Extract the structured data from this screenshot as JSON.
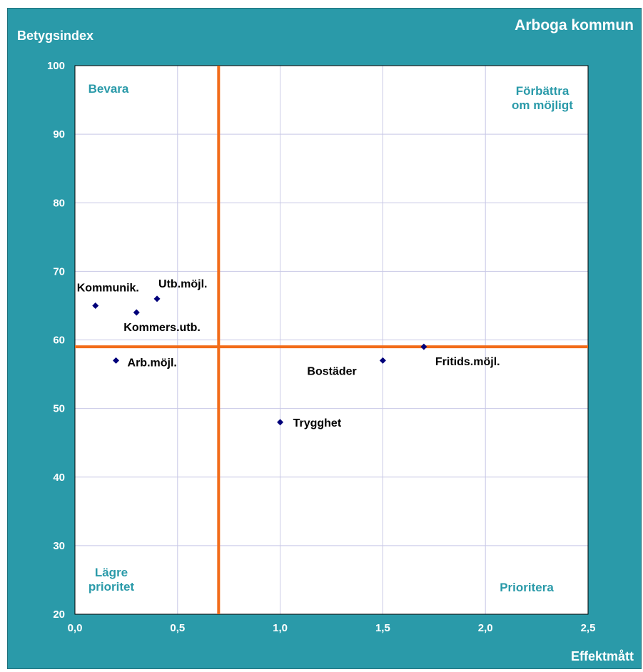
{
  "chart_data": {
    "type": "scatter",
    "title": "Arboga kommun",
    "xlabel": "Effektmått",
    "ylabel": "Betygsindex",
    "xlim": [
      0,
      2.5
    ],
    "ylim": [
      20,
      100
    ],
    "x_ticks": [
      "0,0",
      "0,5",
      "1,0",
      "1,5",
      "2,0",
      "2,5"
    ],
    "y_ticks": [
      "20",
      "30",
      "40",
      "50",
      "60",
      "70",
      "80",
      "90",
      "100"
    ],
    "grid": true,
    "reference_lines": {
      "x": 0.7,
      "y": 59
    },
    "quadrant_labels": {
      "top_left": [
        "Bevara"
      ],
      "top_right": [
        "Förbättra",
        "om möjligt"
      ],
      "bottom_left": [
        "Lägre",
        "prioritet"
      ],
      "bottom_right": [
        "Prioritera"
      ]
    },
    "points": [
      {
        "label": "Kommunik.",
        "x": 0.1,
        "y": 65
      },
      {
        "label": "Utb.möjl.",
        "x": 0.4,
        "y": 66
      },
      {
        "label": "Kommers.utb.",
        "x": 0.3,
        "y": 64
      },
      {
        "label": "Arb.möjl.",
        "x": 0.2,
        "y": 57
      },
      {
        "label": "Trygghet",
        "x": 1.0,
        "y": 48
      },
      {
        "label": "Bostäder",
        "x": 1.5,
        "y": 57
      },
      {
        "label": "Fritids.möjl.",
        "x": 1.7,
        "y": 59
      }
    ]
  },
  "colors": {
    "frame": "#2a9aa9",
    "plot_background": "#ffffff",
    "grid": "#c8c8e6",
    "reference_line": "#f26c1a",
    "marker": "#00007a",
    "quadrant_text": "#2a9aa9",
    "frame_text": "#ffffff",
    "point_label": "#000000"
  }
}
